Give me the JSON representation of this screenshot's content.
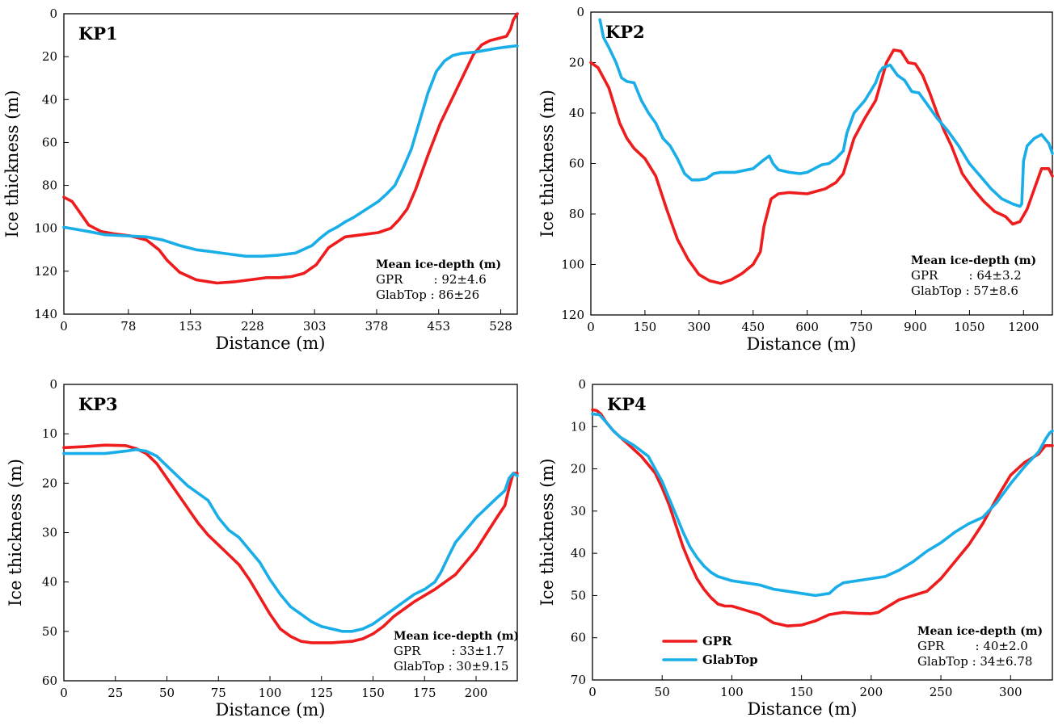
{
  "colors": {
    "gpr": "#ee1c1c",
    "glabtop": "#19aee8"
  },
  "legend": {
    "items": [
      "GPR",
      "GlabTop"
    ]
  },
  "chart_data": [
    {
      "type": "line",
      "panel_label": "KP1",
      "xlabel": "Distance (m)",
      "ylabel": "Ice thickness (m)",
      "xlim": [
        0,
        548
      ],
      "ylim": [
        0,
        140
      ],
      "y_inverted": true,
      "x_ticks": [
        "0",
        "78",
        "153",
        "228",
        "303",
        "378",
        "453",
        "528"
      ],
      "x_tick_values": [
        0,
        78,
        153,
        228,
        303,
        378,
        453,
        528
      ],
      "y_ticks": [
        "0",
        "20",
        "40",
        "60",
        "80",
        "100",
        "120",
        "140"
      ],
      "y_tick_values": [
        0,
        20,
        40,
        60,
        80,
        100,
        120,
        140
      ],
      "stats": {
        "heading": "Mean ice-depth (m)",
        "lines": [
          "GPR        : 92±4.6",
          "GlabTop : 86±26"
        ]
      },
      "series": [
        {
          "name": "GPR",
          "x": [
            0,
            10,
            20,
            30,
            45,
            60,
            80,
            100,
            115,
            125,
            140,
            160,
            185,
            205,
            225,
            245,
            260,
            275,
            290,
            305,
            320,
            340,
            360,
            380,
            395,
            405,
            415,
            425,
            440,
            455,
            470,
            485,
            495,
            505,
            515,
            525,
            535,
            540,
            543,
            546,
            548
          ],
          "y": [
            85.5,
            87.5,
            93,
            98.5,
            101.5,
            102.5,
            103.5,
            105.5,
            110,
            115,
            120.5,
            124,
            125.5,
            125,
            124,
            123,
            123,
            122.5,
            121,
            117,
            109,
            104,
            103,
            102,
            100,
            96,
            91,
            82,
            66,
            51,
            39,
            27,
            19,
            14.5,
            12.5,
            11.5,
            10.5,
            7,
            3,
            1,
            0
          ]
        },
        {
          "name": "GlabTop",
          "x": [
            0,
            15,
            30,
            50,
            75,
            100,
            120,
            140,
            160,
            180,
            200,
            220,
            240,
            260,
            280,
            300,
            310,
            320,
            330,
            340,
            350,
            360,
            370,
            380,
            390,
            400,
            410,
            420,
            430,
            440,
            450,
            460,
            470,
            480,
            495,
            510,
            525,
            535,
            545,
            548
          ],
          "y": [
            99.5,
            100.5,
            101.5,
            103,
            103.5,
            104,
            105.5,
            108,
            110,
            111,
            112,
            113,
            113,
            112.5,
            111.5,
            108,
            104.5,
            101.5,
            99.5,
            97,
            95,
            92.5,
            90,
            87.5,
            84,
            80,
            72,
            63,
            50,
            37,
            27,
            22,
            19.5,
            18.5,
            18,
            17,
            16,
            15.5,
            15,
            15
          ]
        }
      ]
    },
    {
      "type": "line",
      "panel_label": "KP2",
      "xlabel": "Distance (m)",
      "ylabel": "Ice thickness (m)",
      "xlim": [
        0,
        1280
      ],
      "ylim": [
        0,
        120
      ],
      "y_inverted": true,
      "x_ticks": [
        "0",
        "150",
        "300",
        "450",
        "600",
        "750",
        "900",
        "1050",
        "1200"
      ],
      "x_tick_values": [
        0,
        150,
        300,
        450,
        600,
        750,
        900,
        1050,
        1200
      ],
      "y_ticks": [
        "0",
        "20",
        "40",
        "60",
        "80",
        "100",
        "120"
      ],
      "y_tick_values": [
        0,
        20,
        40,
        60,
        80,
        100,
        120
      ],
      "stats": {
        "heading": "Mean ice-depth (m)",
        "lines": [
          "GPR        : 64±3.2",
          "GlabTop : 57±8.6"
        ]
      },
      "series": [
        {
          "name": "GPR",
          "x": [
            0,
            20,
            50,
            80,
            100,
            120,
            150,
            180,
            210,
            240,
            270,
            300,
            330,
            360,
            390,
            420,
            450,
            470,
            480,
            500,
            520,
            550,
            600,
            650,
            680,
            700,
            730,
            760,
            790,
            820,
            840,
            860,
            880,
            900,
            920,
            940,
            960,
            980,
            1000,
            1030,
            1060,
            1090,
            1120,
            1150,
            1170,
            1190,
            1210,
            1230,
            1250,
            1270,
            1280
          ],
          "y": [
            20,
            22,
            30,
            44,
            50,
            54,
            58,
            65,
            78,
            90,
            98,
            104,
            106.5,
            107.5,
            106,
            103.5,
            100,
            95,
            85,
            74,
            72,
            71.5,
            72,
            70,
            67.5,
            64,
            50,
            42,
            35,
            20,
            15,
            15.5,
            20,
            20.5,
            25,
            32,
            40,
            47,
            53,
            64,
            70,
            75,
            79,
            81,
            84,
            83,
            78,
            70,
            62,
            62,
            65
          ]
        },
        {
          "name": "GlabTop",
          "x": [
            25,
            35,
            50,
            70,
            85,
            100,
            120,
            140,
            160,
            180,
            200,
            220,
            240,
            260,
            280,
            300,
            320,
            340,
            360,
            400,
            450,
            480,
            495,
            505,
            520,
            550,
            580,
            600,
            620,
            640,
            660,
            680,
            700,
            710,
            730,
            760,
            790,
            800,
            810,
            830,
            850,
            870,
            890,
            910,
            930,
            960,
            990,
            1020,
            1050,
            1080,
            1110,
            1140,
            1170,
            1190,
            1195,
            1200,
            1210,
            1230,
            1250,
            1270,
            1280
          ],
          "y": [
            3,
            10,
            14,
            20,
            26,
            27.5,
            28,
            35,
            40,
            44,
            50,
            53,
            58,
            64,
            66.5,
            66.5,
            66,
            64,
            63.5,
            63.5,
            62,
            58.5,
            57,
            60,
            62.5,
            63.5,
            64,
            63.5,
            62,
            60.5,
            60,
            58,
            55,
            48,
            40,
            35,
            28,
            24,
            22,
            21,
            25,
            27,
            31.5,
            32,
            36,
            42,
            47,
            53,
            60,
            65,
            70,
            74,
            76,
            77,
            76,
            59,
            53,
            50,
            48.5,
            52,
            56
          ]
        }
      ]
    },
    {
      "type": "line",
      "panel_label": "KP3",
      "xlabel": "Distance (m)",
      "ylabel": "Ice thickness (m)",
      "xlim": [
        0,
        220
      ],
      "ylim": [
        0,
        60
      ],
      "y_inverted": true,
      "x_ticks": [
        "0",
        "25",
        "50",
        "75",
        "100",
        "125",
        "150",
        "175",
        "200"
      ],
      "x_tick_values": [
        0,
        25,
        50,
        75,
        100,
        125,
        150,
        175,
        200
      ],
      "y_ticks": [
        "0",
        "10",
        "20",
        "30",
        "40",
        "50",
        "60"
      ],
      "y_tick_values": [
        0,
        10,
        20,
        30,
        40,
        50,
        60
      ],
      "stats": {
        "heading": "Mean ice-depth (m)",
        "lines": [
          "GPR        : 33±1.7",
          "GlabTop : 30±9.15"
        ]
      },
      "series": [
        {
          "name": "GPR",
          "x": [
            0,
            10,
            20,
            30,
            35,
            40,
            45,
            50,
            55,
            60,
            65,
            70,
            75,
            80,
            85,
            90,
            95,
            100,
            105,
            110,
            115,
            120,
            125,
            130,
            140,
            145,
            150,
            155,
            160,
            170,
            180,
            190,
            200,
            210,
            214,
            216,
            218,
            220
          ],
          "y": [
            12.8,
            12.6,
            12.3,
            12.4,
            13,
            14,
            16,
            19,
            22,
            25,
            28,
            30.5,
            32.5,
            34.5,
            36.5,
            39.5,
            43,
            46.5,
            49.5,
            51,
            52,
            52.3,
            52.3,
            52.3,
            52,
            51.5,
            50.5,
            49,
            47,
            44,
            41.5,
            38.5,
            33.5,
            27,
            24.5,
            21,
            18,
            18
          ]
        },
        {
          "name": "GlabTop",
          "x": [
            0,
            10,
            20,
            30,
            35,
            40,
            45,
            50,
            55,
            60,
            65,
            70,
            75,
            80,
            85,
            90,
            95,
            100,
            105,
            110,
            115,
            120,
            125,
            130,
            135,
            140,
            145,
            150,
            155,
            160,
            165,
            170,
            175,
            180,
            183,
            187,
            190,
            200,
            210,
            214,
            216,
            218,
            220
          ],
          "y": [
            14,
            14,
            14,
            13.5,
            13.2,
            13.5,
            14.5,
            16.5,
            18.5,
            20.5,
            22,
            23.5,
            27,
            29.5,
            31,
            33.5,
            36,
            39.5,
            42.5,
            45,
            46.5,
            48,
            49,
            49.5,
            50,
            50,
            49.5,
            48.5,
            47,
            45.5,
            44,
            42.5,
            41.5,
            40,
            38,
            34.5,
            32,
            27,
            23,
            21.5,
            19,
            18,
            18.5
          ]
        }
      ]
    },
    {
      "type": "line",
      "panel_label": "KP4",
      "xlabel": "Distance (m)",
      "ylabel": "Ice thickness (m)",
      "xlim": [
        0,
        330
      ],
      "ylim": [
        0,
        70
      ],
      "y_inverted": true,
      "x_ticks": [
        "0",
        "50",
        "100",
        "150",
        "200",
        "250",
        "300"
      ],
      "x_tick_values": [
        0,
        50,
        100,
        150,
        200,
        250,
        300
      ],
      "y_ticks": [
        "0",
        "10",
        "20",
        "30",
        "40",
        "50",
        "60",
        "70"
      ],
      "y_tick_values": [
        0,
        10,
        20,
        30,
        40,
        50,
        60,
        70
      ],
      "stats": {
        "heading": "Mean ice-depth (m)",
        "lines": [
          "GPR        : 40±2.0",
          "GlabTop : 34±6.78"
        ]
      },
      "series": [
        {
          "name": "GPR",
          "x": [
            0,
            3,
            6,
            10,
            15,
            20,
            25,
            30,
            35,
            40,
            45,
            50,
            55,
            60,
            65,
            70,
            75,
            80,
            85,
            90,
            95,
            100,
            110,
            120,
            130,
            140,
            150,
            160,
            170,
            180,
            190,
            200,
            205,
            210,
            215,
            220,
            230,
            240,
            250,
            260,
            270,
            280,
            290,
            300,
            310,
            320,
            325,
            328,
            330
          ],
          "y": [
            6,
            6.2,
            7,
            9,
            11,
            12.5,
            14,
            15.5,
            17,
            19,
            21,
            24.5,
            28.5,
            33.5,
            38.5,
            42.5,
            46,
            48.5,
            50.5,
            52,
            52.5,
            52.5,
            53.5,
            54.5,
            56.5,
            57.2,
            57,
            56,
            54.5,
            54,
            54.2,
            54.3,
            54,
            53,
            52,
            51,
            50,
            49,
            46,
            42,
            38,
            33,
            27,
            21.5,
            18.5,
            16.5,
            14.5,
            14.5,
            14.5
          ]
        },
        {
          "name": "GlabTop",
          "x": [
            0,
            5,
            10,
            15,
            20,
            30,
            40,
            45,
            50,
            55,
            60,
            65,
            70,
            75,
            80,
            85,
            90,
            95,
            100,
            110,
            120,
            130,
            140,
            150,
            160,
            170,
            175,
            180,
            190,
            200,
            210,
            220,
            230,
            240,
            250,
            260,
            270,
            280,
            290,
            300,
            310,
            320,
            325,
            328,
            330
          ],
          "y": [
            7,
            7.2,
            9,
            11,
            12.5,
            14.5,
            17,
            20,
            23,
            27,
            31,
            35,
            38.5,
            41,
            43,
            44.5,
            45.5,
            46,
            46.5,
            47,
            47.5,
            48.5,
            49,
            49.5,
            50,
            49.5,
            48,
            47,
            46.5,
            46,
            45.5,
            44,
            42,
            39.5,
            37.5,
            35,
            33,
            31.5,
            28,
            23.5,
            19.5,
            16,
            13,
            11.5,
            11
          ]
        }
      ]
    }
  ]
}
